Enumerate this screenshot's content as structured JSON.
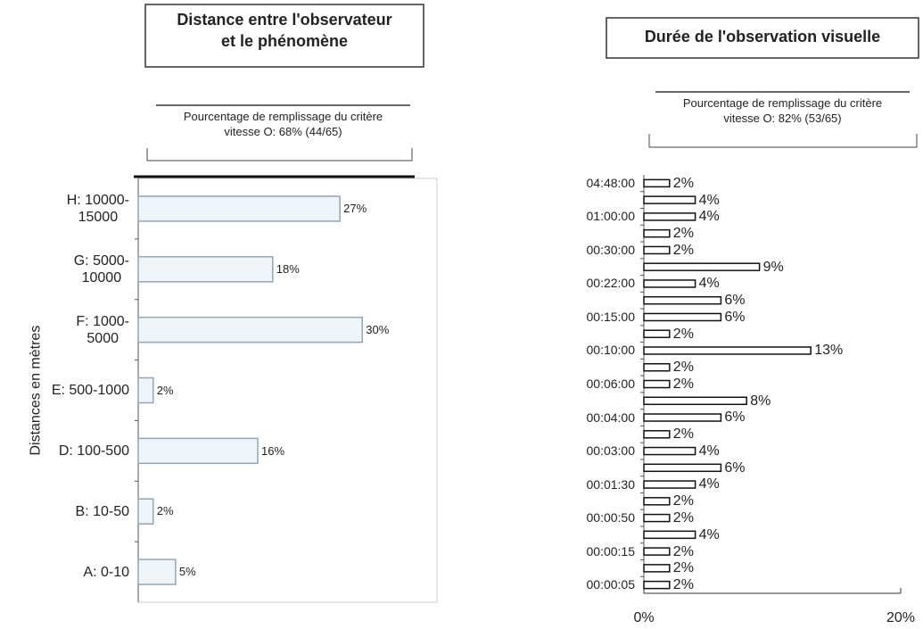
{
  "chart_data": [
    {
      "type": "bar",
      "orientation": "horizontal",
      "title": [
        "Distance entre l'observateur",
        "et le phénomène"
      ],
      "subtitle": [
        "Pourcentage de remplissage du critère",
        "vitesse O: 68% (44/65)"
      ],
      "y_label": "Distances en mètres",
      "categories": [
        "H: 10000-\n15000",
        "G: 5000-\n10000",
        "F: 1000-\n5000",
        "E: 500-1000",
        "D: 100-500",
        "B: 10-50",
        "A: 0-10"
      ],
      "values": [
        27,
        18,
        30,
        2,
        16,
        2,
        5
      ],
      "value_labels": [
        "27%",
        "18%",
        "30%",
        "2%",
        "16%",
        "2%",
        "5%"
      ],
      "xlim": [
        0,
        40
      ],
      "xticks": [],
      "color": "#8fa7b8",
      "fill": "#eef4f8"
    },
    {
      "type": "bar",
      "orientation": "horizontal",
      "title": [
        "Durée de l'observation visuelle"
      ],
      "subtitle": [
        "Pourcentage de remplissage du critère",
        "vitesse O: 82% (53/65)"
      ],
      "categories": [
        "04:48:00",
        null,
        "01:00:00",
        null,
        "00:30:00",
        null,
        "00:22:00",
        null,
        "00:15:00",
        null,
        "00:10:00",
        null,
        "00:06:00",
        null,
        "00:04:00",
        null,
        "00:03:00",
        null,
        "00:01:30",
        null,
        "00:00:50",
        null,
        "00:00:15",
        null,
        "00:00:05"
      ],
      "values": [
        2,
        4,
        4,
        2,
        2,
        9,
        4,
        6,
        6,
        2,
        13,
        2,
        2,
        8,
        6,
        2,
        4,
        6,
        4,
        2,
        2,
        4,
        2,
        2,
        2
      ],
      "value_labels": [
        "2%",
        "4%",
        "4%",
        "2%",
        "2%",
        "9%",
        "4%",
        "6%",
        "6%",
        "2%",
        "13%",
        "2%",
        "2%",
        "8%",
        "6%",
        "2%",
        "4%",
        "6%",
        "4%",
        "2%",
        "2%",
        "4%",
        "2%",
        "2%",
        "2%"
      ],
      "xlim": [
        0,
        20
      ],
      "xticks": [
        {
          "value": 0,
          "label": "0%"
        },
        {
          "value": 20,
          "label": "20%"
        }
      ],
      "color": "#111111",
      "fill": "#ffffff"
    }
  ]
}
